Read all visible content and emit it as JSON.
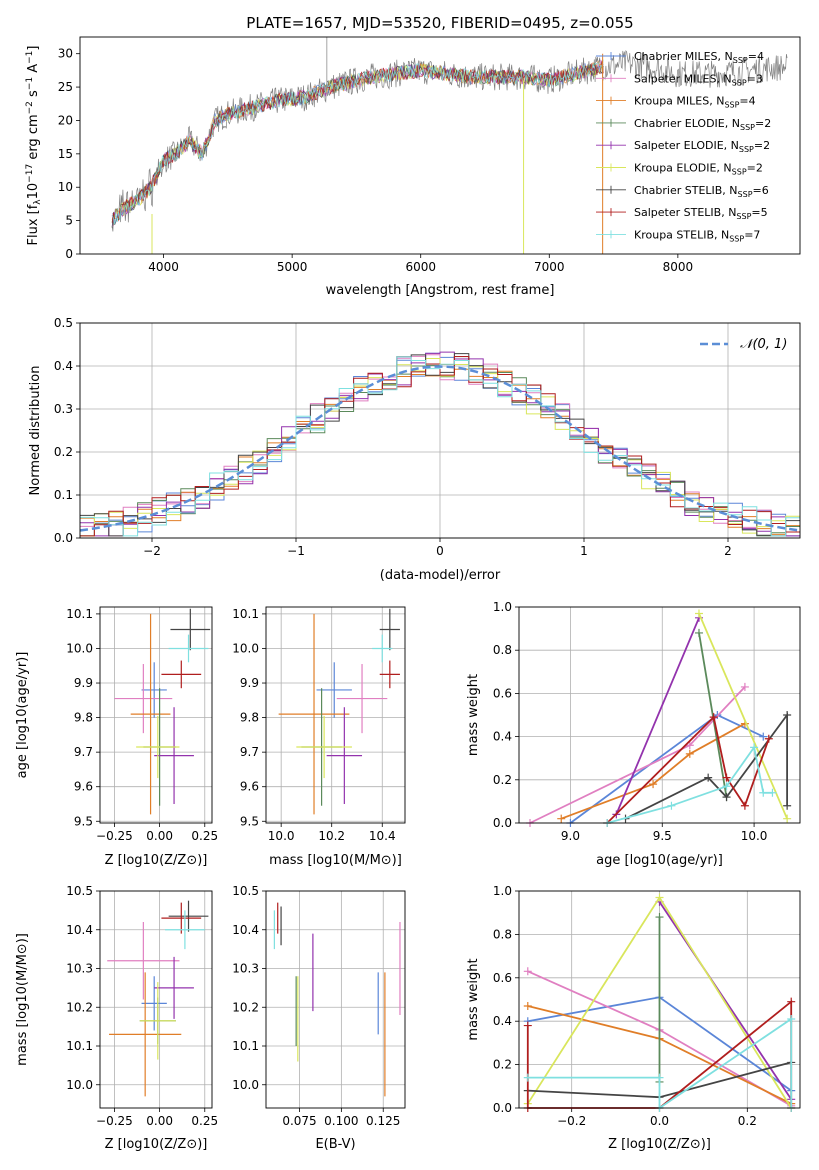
{
  "colors": {
    "Chabrier MILES": "#5b86d8",
    "Salpeter MILES": "#e07fc1",
    "Kroupa MILES": "#e07e28",
    "Chabrier ELODIE": "#5b8a5b",
    "Salpeter ELODIE": "#9333ad",
    "Kroupa ELODIE": "#d9e65c",
    "Chabrier STELIB": "#444444",
    "Salpeter STELIB": "#b01e1e",
    "Kroupa STELIB": "#7fe0e0",
    "normal": "#5b8ed6"
  },
  "chart_data": [
    {
      "id": "spectrum",
      "type": "line",
      "title": "PLATE=1657, MJD=53520, FIBERID=0495, z=0.055",
      "xlabel": "wavelength [Angstrom, rest frame]",
      "ylabel": "Flux [f",
      "ylabel_parts": [
        "Flux [f",
        "λ",
        "10",
        "−17",
        " erg cm",
        "−2",
        " s",
        "−1",
        " A",
        "−1",
        "]"
      ],
      "xlim": [
        3350,
        8950
      ],
      "ylim": [
        0,
        32.5
      ],
      "xticks": [
        4000,
        5000,
        6000,
        7000,
        8000
      ],
      "yticks": [
        0,
        5,
        10,
        15,
        20,
        25,
        30
      ],
      "grid": false,
      "legend_position": "top-right",
      "legend": [
        {
          "label": "Chabrier MILES, N",
          "n": "4"
        },
        {
          "label": "Salpeter MILES, N",
          "n": "3"
        },
        {
          "label": "Kroupa MILES, N",
          "n": "4"
        },
        {
          "label": "Chabrier ELODIE, N",
          "n": "2"
        },
        {
          "label": "Salpeter ELODIE, N",
          "n": "2"
        },
        {
          "label": "Kroupa ELODIE, N",
          "n": "2"
        },
        {
          "label": "Chabrier STELIB, N",
          "n": "6"
        },
        {
          "label": "Salpeter STELIB, N",
          "n": "5"
        },
        {
          "label": "Kroupa STELIB, N",
          "n": "7"
        }
      ],
      "legend_sub": "SSP",
      "continuum": {
        "x": [
          3600,
          3700,
          3800,
          3900,
          4000,
          4100,
          4200,
          4300,
          4400,
          4500,
          4700,
          4900,
          5100,
          5300,
          5600,
          6000,
          6400,
          6800,
          7000,
          7200,
          7400,
          7600,
          7800,
          8000,
          8300,
          8800
        ],
        "y": [
          5,
          7,
          8,
          10,
          14,
          15,
          17,
          15,
          20,
          21,
          22,
          23,
          23.5,
          25,
          26.5,
          27.5,
          26.5,
          26.5,
          26,
          27,
          28,
          28.5,
          28,
          27,
          27,
          28
        ]
      },
      "models_end": 7420
    },
    {
      "id": "residuals",
      "type": "histogram",
      "xlabel": "(data-model)/error",
      "ylabel": "Normed distribution",
      "xlim": [
        -2.5,
        2.5
      ],
      "ylim": [
        0,
        0.5
      ],
      "xticks": [
        -2,
        -1,
        0,
        1,
        2
      ],
      "xtick_labels": [
        "−2",
        "−1",
        "0",
        "1",
        "2"
      ],
      "yticks": [
        0.0,
        0.1,
        0.2,
        0.3,
        0.4,
        0.5
      ],
      "ytick_labels": [
        "0.0",
        "0.1",
        "0.2",
        "0.3",
        "0.4",
        "0.5"
      ],
      "grid": true,
      "legend_position": "top-right",
      "legend_label": "𝒩(0, 1)",
      "bin_width": 0.1,
      "normal": {
        "mu": 0,
        "sigma": 1
      }
    },
    {
      "id": "age-vs-Z",
      "type": "errorbar",
      "xlabel": "Z [log10(Z/Z⊙)]",
      "ylabel": "age  [log10(age/yr)]",
      "xlim": [
        -0.33,
        0.29
      ],
      "ylim": [
        9.495,
        10.12
      ],
      "xticks": [
        -0.25,
        0.0,
        0.25
      ],
      "xtick_labels": [
        "−0.25",
        "0.00",
        "0.25"
      ],
      "yticks": [
        9.5,
        9.6,
        9.7,
        9.8,
        9.9,
        10.0,
        10.1
      ],
      "ytick_labels": [
        "9.5",
        "9.6",
        "9.7",
        "9.8",
        "9.9",
        "10.0",
        "10.1"
      ],
      "grid": true,
      "points": [
        {
          "series": "Chabrier MILES",
          "x": -0.03,
          "xerr": 0.07,
          "y": 9.88,
          "yerr": 0.08
        },
        {
          "series": "Salpeter MILES",
          "x": -0.09,
          "xerr": 0.16,
          "y": 9.855,
          "yerr": 0.1
        },
        {
          "series": "Kroupa MILES",
          "x": -0.05,
          "xerr": 0.11,
          "y": 9.81,
          "yerr": 0.29
        },
        {
          "series": "Chabrier ELODIE",
          "x": 0.0,
          "xerr": 0.09,
          "y": 9.715,
          "yerr": 0.17
        },
        {
          "series": "Salpeter ELODIE",
          "x": 0.08,
          "xerr": 0.11,
          "y": 9.69,
          "yerr": 0.14
        },
        {
          "series": "Kroupa ELODIE",
          "x": -0.01,
          "xerr": 0.12,
          "y": 9.715,
          "yerr": 0.09
        },
        {
          "series": "Chabrier STELIB",
          "x": 0.17,
          "xerr": 0.11,
          "y": 10.055,
          "yerr": 0.06
        },
        {
          "series": "Salpeter STELIB",
          "x": 0.12,
          "xerr": 0.11,
          "y": 9.925,
          "yerr": 0.04
        },
        {
          "series": "Kroupa STELIB",
          "x": 0.16,
          "xerr": 0.11,
          "y": 10.0,
          "yerr": 0.04
        }
      ]
    },
    {
      "id": "age-vs-mass",
      "type": "errorbar",
      "xlabel": "mass [log10(M/M⊙)]",
      "xlim": [
        9.94,
        10.49
      ],
      "ylim": [
        9.495,
        10.12
      ],
      "xticks": [
        10.0,
        10.2,
        10.4
      ],
      "xtick_labels": [
        "10.0",
        "10.2",
        "10.4"
      ],
      "yticks": [
        9.5,
        9.6,
        9.7,
        9.8,
        9.9,
        10.0,
        10.1
      ],
      "ytick_labels": [
        "9.5",
        "9.6",
        "9.7",
        "9.8",
        "9.9",
        "10.0",
        "10.1"
      ],
      "grid": true,
      "points": [
        {
          "series": "Chabrier MILES",
          "x": 10.21,
          "xerr": 0.07,
          "y": 9.88,
          "yerr": 0.08
        },
        {
          "series": "Salpeter MILES",
          "x": 10.32,
          "xerr": 0.1,
          "y": 9.855,
          "yerr": 0.1
        },
        {
          "series": "Kroupa MILES",
          "x": 10.13,
          "xerr": 0.14,
          "y": 9.81,
          "yerr": 0.29
        },
        {
          "series": "Chabrier ELODIE",
          "x": 10.16,
          "xerr": 0.08,
          "y": 9.715,
          "yerr": 0.17
        },
        {
          "series": "Salpeter ELODIE",
          "x": 10.25,
          "xerr": 0.07,
          "y": 9.69,
          "yerr": 0.14
        },
        {
          "series": "Kroupa ELODIE",
          "x": 10.17,
          "xerr": 0.11,
          "y": 9.715,
          "yerr": 0.09
        },
        {
          "series": "Chabrier STELIB",
          "x": 10.43,
          "xerr": 0.04,
          "y": 10.055,
          "yerr": 0.06
        },
        {
          "series": "Salpeter STELIB",
          "x": 10.43,
          "xerr": 0.04,
          "y": 9.925,
          "yerr": 0.04
        },
        {
          "series": "Kroupa STELIB",
          "x": 10.4,
          "xerr": 0.04,
          "y": 10.0,
          "yerr": 0.04
        }
      ]
    },
    {
      "id": "weight-vs-age",
      "type": "line",
      "xlabel": "age  [log10(age/yr)]",
      "ylabel": "mass weight",
      "xlim": [
        8.72,
        10.25
      ],
      "ylim": [
        0,
        1.0
      ],
      "xticks": [
        9.0,
        9.5,
        10.0
      ],
      "xtick_labels": [
        "9.0",
        "9.5",
        "10.0"
      ],
      "yticks": [
        0.0,
        0.2,
        0.4,
        0.6,
        0.8,
        1.0
      ],
      "ytick_labels": [
        "0.0",
        "0.2",
        "0.4",
        "0.6",
        "0.8",
        "1.0"
      ],
      "grid": true,
      "series": [
        {
          "name": "Chabrier MILES",
          "x": [
            9.0,
            9.8,
            10.05
          ],
          "y": [
            0.0,
            0.5,
            0.4
          ]
        },
        {
          "name": "Salpeter MILES",
          "x": [
            8.78,
            9.65,
            9.95
          ],
          "y": [
            0.0,
            0.36,
            0.63
          ]
        },
        {
          "name": "Kroupa MILES",
          "x": [
            8.95,
            9.45,
            9.65,
            9.95
          ],
          "y": [
            0.02,
            0.18,
            0.32,
            0.46
          ]
        },
        {
          "name": "Chabrier ELODIE",
          "x": [
            9.7,
            9.85
          ],
          "y": [
            0.88,
            0.12
          ]
        },
        {
          "name": "Salpeter ELODIE",
          "x": [
            9.25,
            9.7
          ],
          "y": [
            0.04,
            0.95
          ]
        },
        {
          "name": "Kroupa ELODIE",
          "x": [
            9.7,
            10.18
          ],
          "y": [
            0.97,
            0.02
          ]
        },
        {
          "name": "Chabrier STELIB",
          "x": [
            9.3,
            9.75,
            9.85,
            10.18,
            10.18
          ],
          "y": [
            0.02,
            0.21,
            0.12,
            0.5,
            0.08
          ]
        },
        {
          "name": "Salpeter STELIB",
          "x": [
            9.2,
            9.78,
            9.85,
            9.95,
            10.08
          ],
          "y": [
            0.0,
            0.49,
            0.21,
            0.08,
            0.39
          ]
        },
        {
          "name": "Kroupa STELIB",
          "x": [
            9.2,
            9.55,
            9.85,
            10.0,
            10.05,
            10.1
          ],
          "y": [
            0.0,
            0.08,
            0.17,
            0.35,
            0.14,
            0.14
          ]
        }
      ]
    },
    {
      "id": "mass-vs-Z",
      "type": "errorbar",
      "xlabel": "Z [log10(Z/Z⊙)]",
      "ylabel": "mass [log10(M/M⊙)]",
      "xlim": [
        -0.33,
        0.29
      ],
      "ylim": [
        9.94,
        10.5
      ],
      "xticks": [
        -0.25,
        0.0,
        0.25
      ],
      "xtick_labels": [
        "−0.25",
        "0.00",
        "0.25"
      ],
      "yticks": [
        10.0,
        10.1,
        10.2,
        10.3,
        10.4,
        10.5
      ],
      "ytick_labels": [
        "10.0",
        "10.1",
        "10.2",
        "10.3",
        "10.4",
        "10.5"
      ],
      "grid": true,
      "points": [
        {
          "series": "Chabrier MILES",
          "x": -0.03,
          "xerr": 0.07,
          "y": 10.21,
          "yerr": 0.07
        },
        {
          "series": "Salpeter MILES",
          "x": -0.09,
          "xerr": 0.2,
          "y": 10.32,
          "yerr": 0.1
        },
        {
          "series": "Kroupa MILES",
          "x": -0.08,
          "xerr": 0.2,
          "y": 10.13,
          "yerr": 0.16
        },
        {
          "series": "Chabrier ELODIE",
          "x": -0.01,
          "xerr": 0.1,
          "y": 10.165,
          "yerr": 0.06
        },
        {
          "series": "Salpeter ELODIE",
          "x": 0.08,
          "xerr": 0.11,
          "y": 10.25,
          "yerr": 0.08
        },
        {
          "series": "Kroupa ELODIE",
          "x": -0.01,
          "xerr": 0.1,
          "y": 10.165,
          "yerr": 0.1
        },
        {
          "series": "Chabrier STELIB",
          "x": 0.16,
          "xerr": 0.11,
          "y": 10.435,
          "yerr": 0.04
        },
        {
          "series": "Salpeter STELIB",
          "x": 0.12,
          "xerr": 0.11,
          "y": 10.43,
          "yerr": 0.04
        },
        {
          "series": "Kroupa STELIB",
          "x": 0.14,
          "xerr": 0.11,
          "y": 10.4,
          "yerr": 0.05
        }
      ]
    },
    {
      "id": "mass-vs-EBV",
      "type": "errorbar",
      "xlabel": "E(B-V)",
      "xlim": [
        0.055,
        0.138
      ],
      "ylim": [
        9.94,
        10.5
      ],
      "xticks": [
        0.075,
        0.1,
        0.125
      ],
      "xtick_labels": [
        "0.075",
        "0.100",
        "0.125"
      ],
      "yticks": [
        10.0,
        10.1,
        10.2,
        10.3,
        10.4,
        10.5
      ],
      "ytick_labels": [
        "10.0",
        "10.1",
        "10.2",
        "10.3",
        "10.4",
        "10.5"
      ],
      "grid": true,
      "points": [
        {
          "series": "Chabrier MILES",
          "x": 0.122,
          "xerr": 0,
          "y": 10.21,
          "yerr": 0.08
        },
        {
          "series": "Salpeter MILES",
          "x": 0.135,
          "xerr": 0,
          "y": 10.3,
          "yerr": 0.12
        },
        {
          "series": "Kroupa MILES",
          "x": 0.126,
          "xerr": 0,
          "y": 10.13,
          "yerr": 0.16
        },
        {
          "series": "Chabrier ELODIE",
          "x": 0.073,
          "xerr": 0,
          "y": 10.19,
          "yerr": 0.09
        },
        {
          "series": "Salpeter ELODIE",
          "x": 0.083,
          "xerr": 0,
          "y": 10.29,
          "yerr": 0.1
        },
        {
          "series": "Kroupa ELODIE",
          "x": 0.074,
          "xerr": 0,
          "y": 10.17,
          "yerr": 0.11
        },
        {
          "series": "Chabrier STELIB",
          "x": 0.064,
          "xerr": 0,
          "y": 10.41,
          "yerr": 0.05
        },
        {
          "series": "Salpeter STELIB",
          "x": 0.062,
          "xerr": 0,
          "y": 10.43,
          "yerr": 0.04
        },
        {
          "series": "Kroupa STELIB",
          "x": 0.06,
          "xerr": 0,
          "y": 10.4,
          "yerr": 0.05
        }
      ]
    },
    {
      "id": "weight-vs-Z",
      "type": "line",
      "xlabel": "Z [log10(Z/Z⊙)]",
      "ylabel": "mass weight",
      "xlim": [
        -0.32,
        0.32
      ],
      "ylim": [
        0,
        1.0
      ],
      "xticks": [
        -0.2,
        0.0,
        0.2
      ],
      "xtick_labels": [
        "−0.2",
        "0.0",
        "0.2"
      ],
      "yticks": [
        0.0,
        0.2,
        0.4,
        0.6,
        0.8,
        1.0
      ],
      "ytick_labels": [
        "0.0",
        "0.2",
        "0.4",
        "0.6",
        "0.8",
        "1.0"
      ],
      "grid": true,
      "series": [
        {
          "name": "Chabrier MILES",
          "x": [
            -0.3,
            0.0,
            0.3
          ],
          "y": [
            0.4,
            0.51,
            0.08
          ]
        },
        {
          "name": "Salpeter MILES",
          "x": [
            -0.3,
            0.0,
            0.3
          ],
          "y": [
            0.63,
            0.36,
            0.01
          ]
        },
        {
          "name": "Kroupa MILES",
          "x": [
            -0.3,
            0.0,
            0.3
          ],
          "y": [
            0.47,
            0.32,
            0.02
          ]
        },
        {
          "name": "Chabrier ELODIE",
          "x": [
            0.0,
            0.0
          ],
          "y": [
            0.88,
            0.12
          ]
        },
        {
          "name": "Salpeter ELODIE",
          "x": [
            0.0,
            0.3
          ],
          "y": [
            0.95,
            0.04
          ]
        },
        {
          "name": "Kroupa ELODIE",
          "x": [
            -0.3,
            0.0,
            0.3
          ],
          "y": [
            0.02,
            0.97,
            0.0
          ]
        },
        {
          "name": "Chabrier STELIB",
          "x": [
            -0.3,
            0.0,
            0.3
          ],
          "y": [
            0.08,
            0.05,
            0.21
          ]
        },
        {
          "name": "Salpeter STELIB",
          "x": [
            -0.3,
            -0.3,
            0.0,
            0.3,
            0.3
          ],
          "y": [
            0.38,
            0.0,
            0.0,
            0.49,
            0.0
          ]
        },
        {
          "name": "Kroupa STELIB",
          "x": [
            -0.3,
            0.0,
            0.0,
            0.3,
            0.3
          ],
          "y": [
            0.14,
            0.14,
            0.0,
            0.41,
            0.0
          ]
        }
      ]
    }
  ]
}
